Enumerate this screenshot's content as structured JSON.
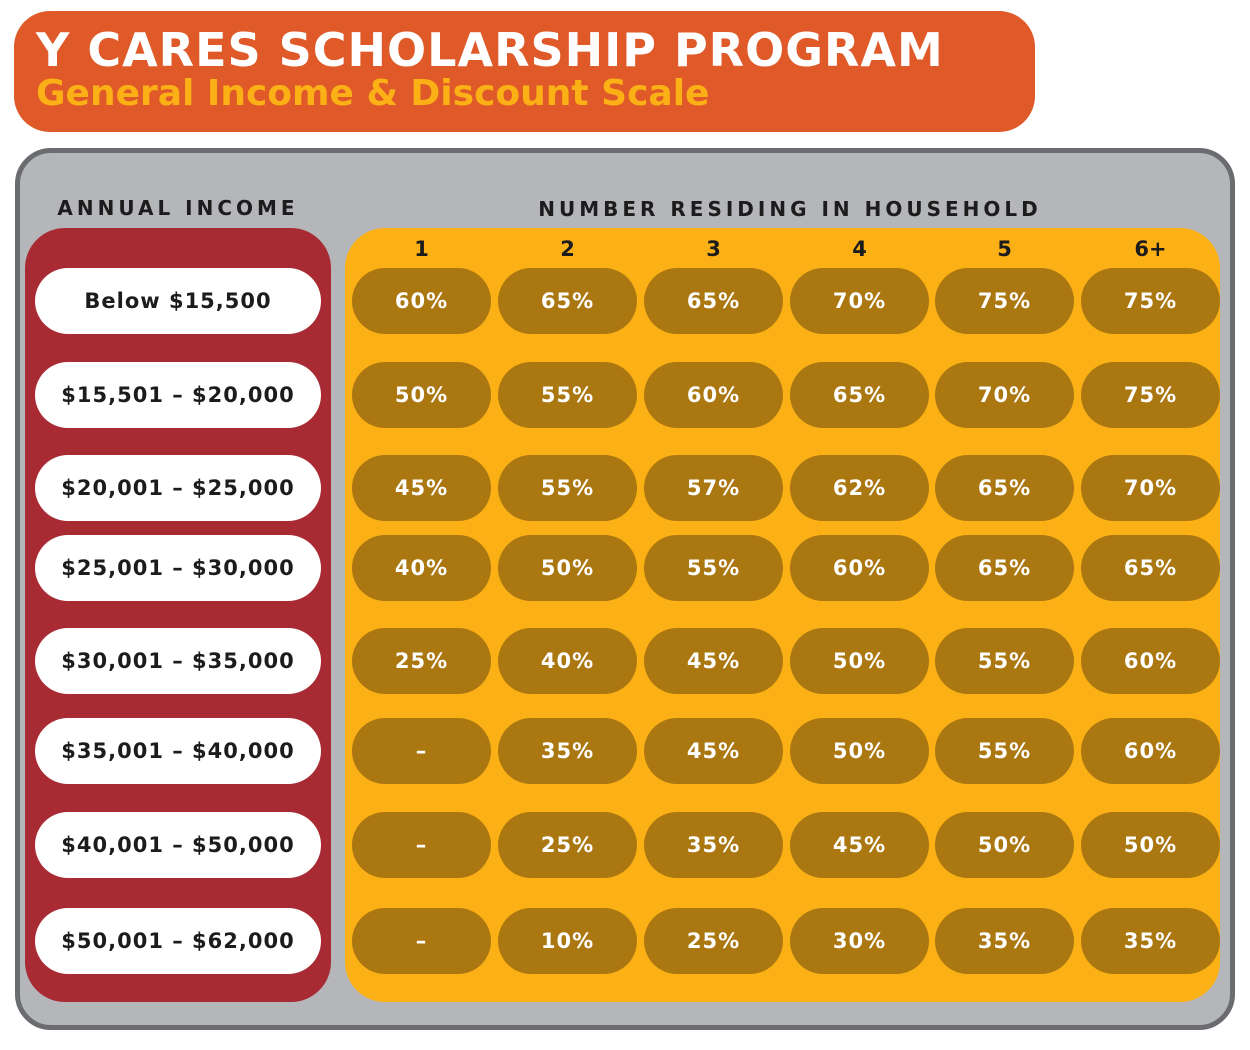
{
  "title": "Y CARES SCHOLARSHIP PROGRAM",
  "subtitle": "General Income & Discount Scale",
  "income_header": "ANNUAL INCOME",
  "household_header": "NUMBER RESIDING IN HOUSEHOLD",
  "household_sizes": [
    "1",
    "2",
    "3",
    "4",
    "5",
    "6+"
  ],
  "rows": [
    {
      "income": "Below $15,500",
      "rates": [
        "60%",
        "65%",
        "65%",
        "70%",
        "75%",
        "75%"
      ]
    },
    {
      "income": "$15,501 – $20,000",
      "rates": [
        "50%",
        "55%",
        "60%",
        "65%",
        "70%",
        "75%"
      ]
    },
    {
      "income": "$20,001 – $25,000",
      "rates": [
        "45%",
        "55%",
        "57%",
        "62%",
        "65%",
        "70%"
      ]
    },
    {
      "income": "$25,001 – $30,000",
      "rates": [
        "40%",
        "50%",
        "55%",
        "60%",
        "65%",
        "65%"
      ]
    },
    {
      "income": "$30,001 – $35,000",
      "rates": [
        "25%",
        "40%",
        "45%",
        "50%",
        "55%",
        "60%"
      ]
    },
    {
      "income": "$35,001 – $40,000",
      "rates": [
        "–",
        "35%",
        "45%",
        "50%",
        "55%",
        "60%"
      ]
    },
    {
      "income": "$40,001 – $50,000",
      "rates": [
        "–",
        "25%",
        "35%",
        "45%",
        "50%",
        "50%"
      ]
    },
    {
      "income": "$50,001 – $62,000",
      "rates": [
        "–",
        "10%",
        "25%",
        "30%",
        "35%",
        "35%"
      ]
    }
  ],
  "colors": {
    "banner": "#df5a28",
    "subtitle": "#fbb116",
    "frame": "#b5b6ba",
    "income_panel": "#a82a33",
    "household_panel": "#fbb116",
    "rate_pill": "#ab7711"
  }
}
